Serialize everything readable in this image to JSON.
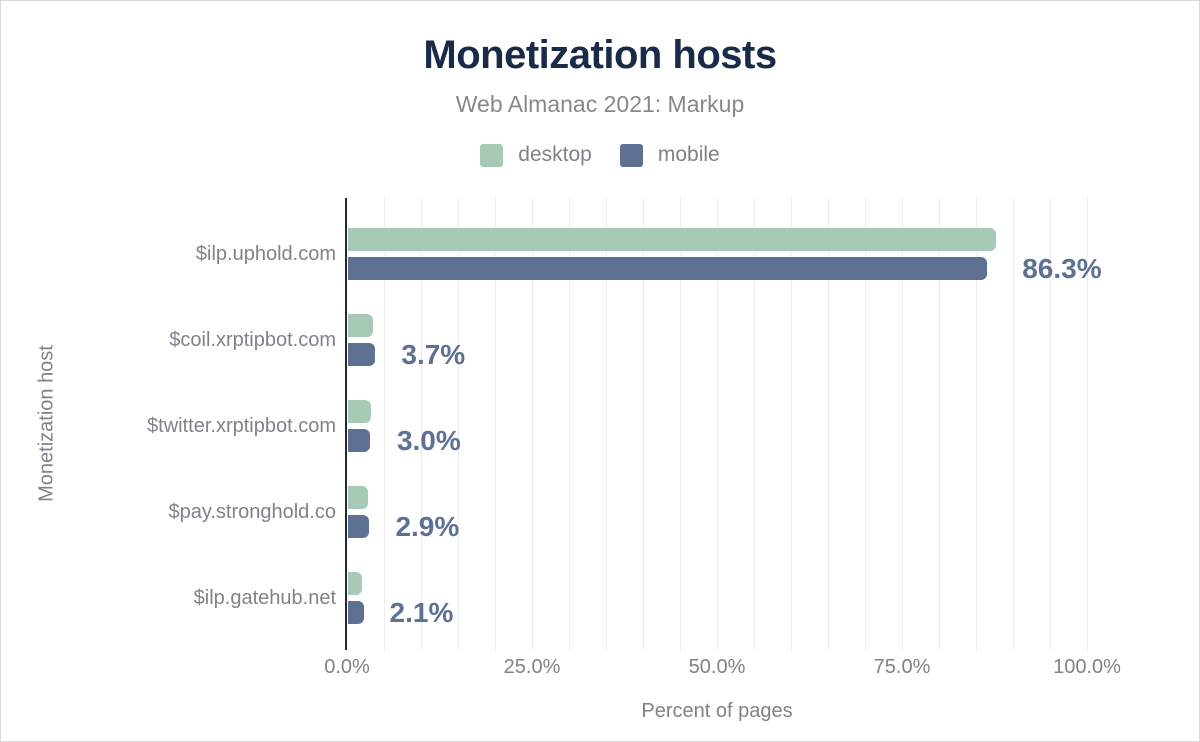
{
  "header": {
    "title": "Monetization hosts",
    "subtitle": "Web Almanac 2021: Markup"
  },
  "colors": {
    "title": "#1a2b49",
    "text_muted": "#7e828a",
    "axis_line": "#262b33",
    "gridline": "#ececec",
    "value_label": "#5e7192",
    "desktop": "#a6cab6",
    "mobile": "#5e7192",
    "background": "#ffffff"
  },
  "chart_data": {
    "type": "bar",
    "orientation": "horizontal",
    "title": "Monetization hosts",
    "subtitle": "Web Almanac 2021: Markup",
    "categories": [
      "$ilp.uphold.com",
      "$coil.xrptipbot.com",
      "$twitter.xrptipbot.com",
      "$pay.stronghold.co",
      "$ilp.gatehub.net"
    ],
    "series": [
      {
        "name": "desktop",
        "color": "#a6cab6",
        "values": [
          87.6,
          3.4,
          3.1,
          2.7,
          1.9
        ]
      },
      {
        "name": "mobile",
        "color": "#5e7192",
        "values": [
          86.3,
          3.7,
          3.0,
          2.9,
          2.1
        ]
      }
    ],
    "value_labels": [
      "86.3%",
      "3.7%",
      "3.0%",
      "2.9%",
      "2.1%"
    ],
    "value_label_series": "mobile",
    "xlabel": "Percent of pages",
    "ylabel": "Monetization host",
    "xlim": [
      0,
      100
    ],
    "x_ticks": [
      {
        "label": "0.0%",
        "value": 0
      },
      {
        "label": "25.0%",
        "value": 25
      },
      {
        "label": "50.0%",
        "value": 50
      },
      {
        "label": "75.0%",
        "value": 75
      },
      {
        "label": "100.0%",
        "value": 100
      }
    ],
    "grid": {
      "step": 5,
      "show": true,
      "color": "#ececec"
    },
    "legend_position": "top"
  }
}
